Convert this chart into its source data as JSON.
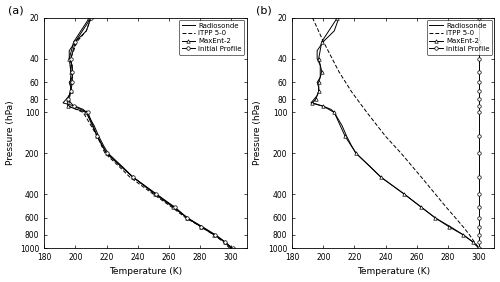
{
  "panel_a": {
    "radiosonde": {
      "pressure": [
        20,
        25,
        30,
        35,
        40,
        45,
        50,
        55,
        60,
        65,
        70,
        75,
        80,
        85,
        90,
        95,
        100,
        125,
        150,
        175,
        200,
        250,
        300,
        400,
        500,
        600,
        700,
        800,
        900,
        1000
      ],
      "temperature": [
        210,
        207,
        200,
        196,
        196,
        198,
        198,
        198,
        196,
        197,
        197,
        196,
        194,
        192,
        200,
        205,
        207,
        212,
        215,
        218,
        221,
        230,
        237,
        252,
        263,
        272,
        282,
        290,
        296,
        300
      ]
    },
    "itpp": {
      "pressure": [
        20,
        25,
        30,
        40,
        50,
        60,
        70,
        80,
        90,
        100,
        125,
        150,
        200,
        250,
        300,
        400,
        500,
        600,
        700,
        800,
        900,
        1000
      ],
      "temperature": [
        210,
        207,
        201,
        197,
        197,
        197,
        197,
        196,
        196,
        205,
        210,
        214,
        219,
        228,
        235,
        250,
        262,
        271,
        281,
        289,
        295,
        299
      ]
    },
    "maxent2": {
      "pressure": [
        20,
        30,
        40,
        50,
        60,
        70,
        80,
        90,
        100,
        150,
        200,
        300,
        400,
        500,
        600,
        700,
        800,
        900,
        1000
      ],
      "temperature": [
        209,
        199,
        196,
        197,
        197,
        197,
        195,
        195,
        207,
        214,
        220,
        237,
        251,
        263,
        272,
        281,
        289,
        296,
        300
      ]
    },
    "initial": {
      "pressure": [
        20,
        30,
        40,
        50,
        60,
        70,
        80,
        90,
        100,
        150,
        200,
        300,
        400,
        500,
        600,
        700,
        800,
        900,
        1000
      ],
      "temperature": [
        210,
        200,
        197,
        198,
        198,
        197,
        195,
        199,
        208,
        214,
        220,
        237,
        252,
        264,
        272,
        281,
        290,
        296,
        301
      ]
    }
  },
  "panel_b": {
    "radiosonde": {
      "pressure": [
        20,
        25,
        30,
        35,
        40,
        45,
        50,
        55,
        60,
        65,
        70,
        75,
        80,
        85,
        90,
        95,
        100,
        125,
        150,
        175,
        200,
        250,
        300,
        400,
        500,
        600,
        700,
        800,
        900,
        1000
      ],
      "temperature": [
        210,
        207,
        200,
        196,
        196,
        198,
        198,
        198,
        196,
        197,
        197,
        196,
        194,
        192,
        200,
        205,
        207,
        212,
        215,
        218,
        221,
        230,
        237,
        252,
        263,
        272,
        282,
        290,
        296,
        300
      ]
    },
    "itpp": {
      "pressure": [
        20,
        30,
        50,
        70,
        100,
        150,
        200,
        300,
        400,
        500,
        600,
        700,
        800,
        900,
        1000
      ],
      "temperature": [
        193,
        200,
        210,
        218,
        228,
        240,
        250,
        263,
        272,
        279,
        285,
        290,
        294,
        297,
        300
      ]
    },
    "maxent2": {
      "pressure": [
        20,
        30,
        40,
        50,
        60,
        70,
        80,
        85,
        90,
        100,
        150,
        200,
        300,
        400,
        500,
        600,
        700,
        800,
        900,
        1000
      ],
      "temperature": [
        209,
        199,
        197,
        199,
        197,
        197,
        195,
        193,
        200,
        207,
        214,
        221,
        237,
        252,
        263,
        272,
        281,
        290,
        296,
        300
      ]
    },
    "initial": {
      "pressure": [
        20,
        30,
        40,
        50,
        60,
        70,
        80,
        90,
        100,
        150,
        200,
        300,
        400,
        500,
        600,
        700,
        800,
        900,
        1000
      ],
      "temperature": [
        300,
        300,
        300,
        300,
        300,
        300,
        300,
        300,
        300,
        300,
        300,
        300,
        300,
        300,
        300,
        300,
        300,
        300,
        300
      ]
    }
  },
  "xlim": [
    180,
    310
  ],
  "xticks": [
    180,
    200,
    220,
    240,
    260,
    280,
    300
  ],
  "ylim": [
    1000,
    20
  ],
  "yticks": [
    20,
    40,
    60,
    80,
    100,
    200,
    400,
    600,
    800,
    1000
  ],
  "xlabel": "Temperature (K)",
  "ylabel": "Pressure (hPa)",
  "line_color": "#000000",
  "bg_color": "#ffffff",
  "figsize": [
    5.0,
    2.82
  ],
  "dpi": 100
}
